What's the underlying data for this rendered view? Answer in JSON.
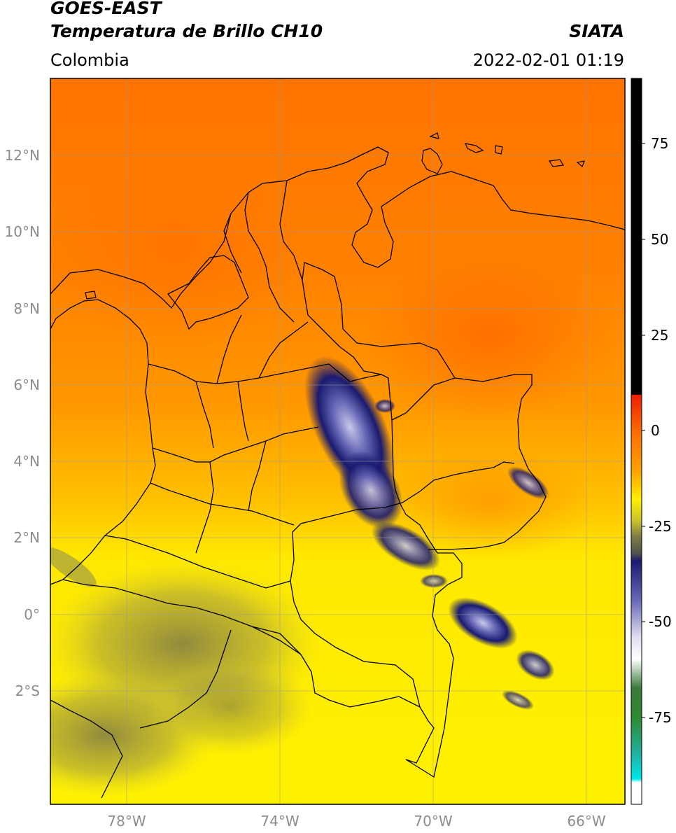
{
  "header": {
    "satellite": "GOES-EAST",
    "product": "Temperatura de Brillo CH10",
    "organization": "SIATA",
    "region": "Colombia",
    "timestamp": "2022-02-01 01:19"
  },
  "map": {
    "lat_labels": [
      "12°N",
      "10°N",
      "8°N",
      "6°N",
      "4°N",
      "2°N",
      "0°",
      "2°S"
    ],
    "lon_labels": [
      "78°W",
      "74°W",
      "70°W",
      "66°W"
    ],
    "extent": {
      "lon": [
        -80,
        -65
      ],
      "lat": [
        -5,
        14
      ]
    }
  },
  "colorbar": {
    "tick_labels": [
      "75",
      "50",
      "25",
      "0",
      "-25",
      "-50",
      "-75"
    ],
    "tick_values": [
      75,
      50,
      25,
      0,
      -25,
      -50,
      -75
    ],
    "range": [
      -95,
      90
    ],
    "colors": {
      "warm_above_8": "#000000",
      "red": "#ee1c00",
      "orange": "#ff7a00",
      "yellow": "#fff200",
      "olive": "#808040",
      "navy": "#1a1a70",
      "white": "#ffffff",
      "green": "#2e8a2e",
      "teal": "#20b0a0",
      "cyan": "#00e8e8"
    }
  }
}
